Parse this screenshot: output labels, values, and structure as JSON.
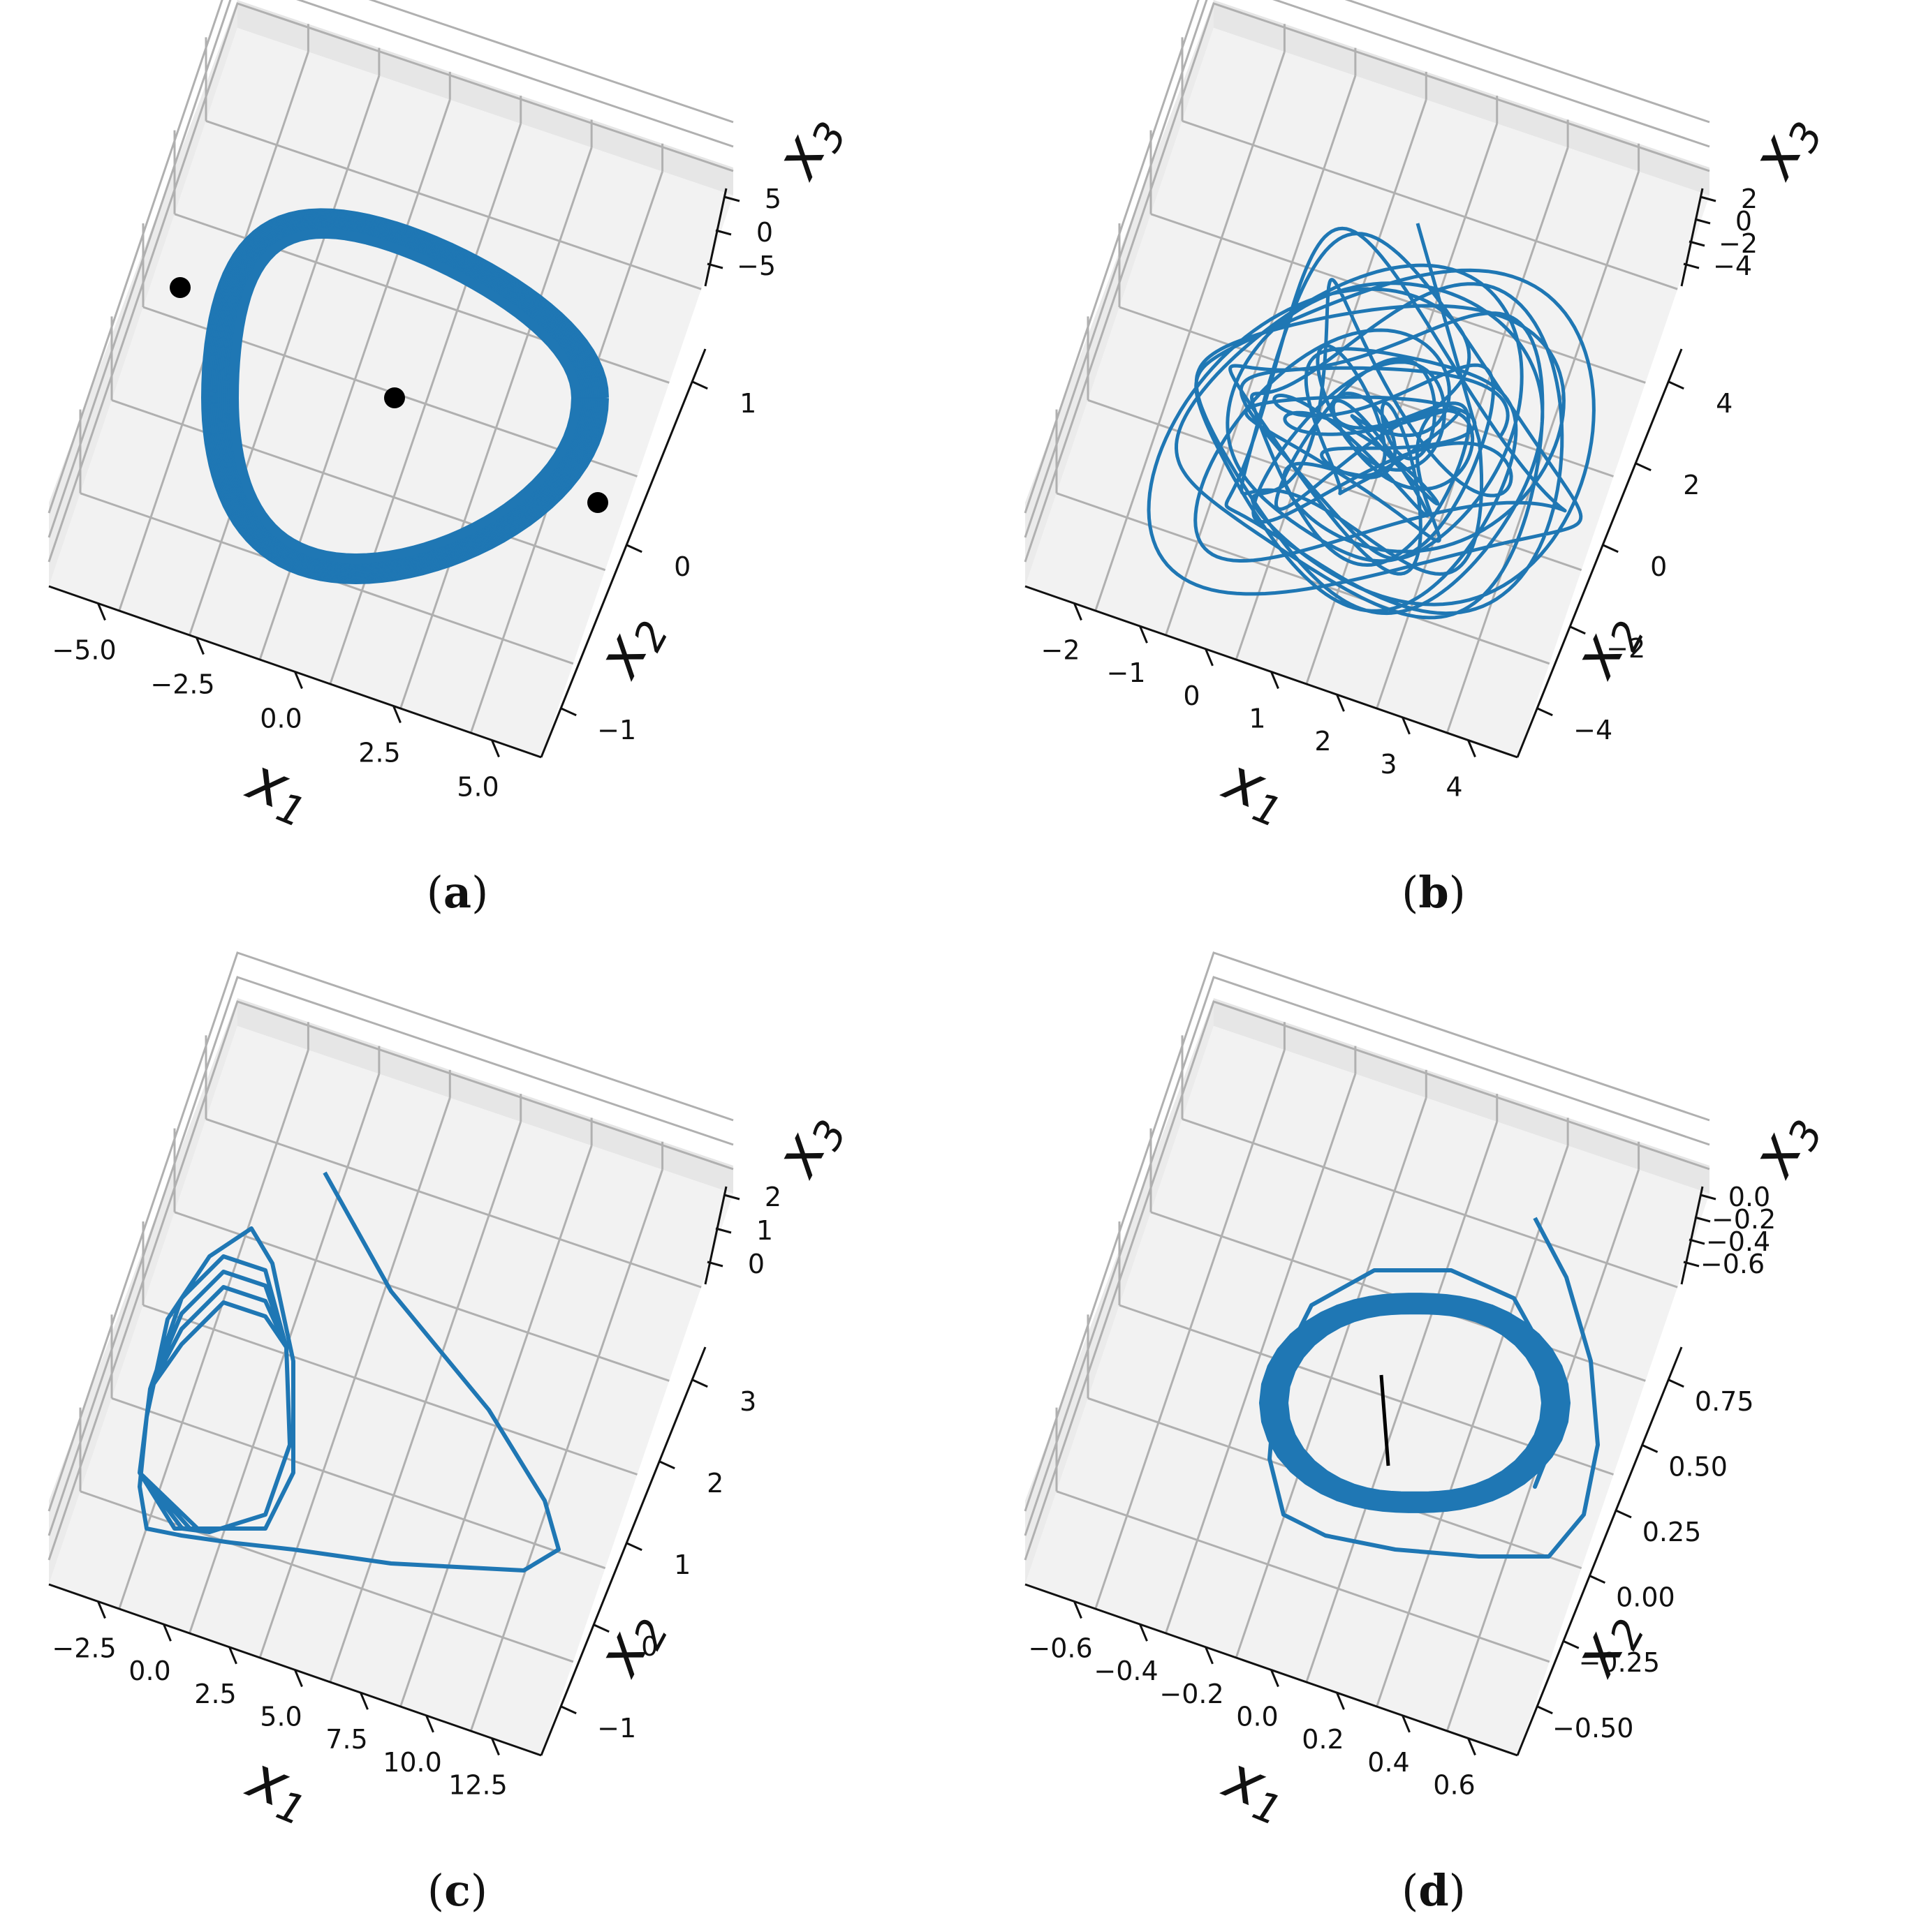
{
  "chart_data": [
    {
      "type": "line",
      "caption": "(a)",
      "caption_letter": "a",
      "x1_ticks": [
        "−5.0",
        "−2.5",
        "0.0",
        "2.5",
        "5.0"
      ],
      "x2_ticks": [
        "−1",
        "0",
        "1"
      ],
      "x3_ticks": [
        "5",
        "0",
        "−5"
      ],
      "xlabel": "x",
      "xlabel_sub": "1",
      "ylabel": "x",
      "ylabel_sub": "2",
      "zlabel": "x",
      "zlabel_sub": "3",
      "series_color": "#1f77b4",
      "trajectory": "dense chaotic attractor band",
      "points": [
        {
          "x1": -5.5,
          "x2": 0.9,
          "x3": 5
        },
        {
          "x1": 0.0,
          "x2": 0.0,
          "x3": 0
        },
        {
          "x1": 5.5,
          "x2": -0.9,
          "x3": -5
        }
      ],
      "point_color": "#000000"
    },
    {
      "type": "line",
      "caption": "(b)",
      "caption_letter": "b",
      "x1_ticks": [
        "−2",
        "−1",
        "0",
        "1",
        "2",
        "3",
        "4"
      ],
      "x2_ticks": [
        "−4",
        "−2",
        "0",
        "2",
        "4"
      ],
      "x3_ticks": [
        "2",
        "0",
        "−2",
        "−4"
      ],
      "xlabel": "x",
      "xlabel_sub": "1",
      "ylabel": "x",
      "ylabel_sub": "2",
      "zlabel": "x",
      "zlabel_sub": "3",
      "series_color": "#1f77b4",
      "trajectory": "multi-loop chaotic trajectory"
    },
    {
      "type": "line",
      "caption": "(c)",
      "caption_letter": "c",
      "x1_ticks": [
        "−2.5",
        "0.0",
        "2.5",
        "5.0",
        "7.5",
        "10.0",
        "12.5"
      ],
      "x2_ticks": [
        "−1",
        "0",
        "1",
        "2",
        "3"
      ],
      "x3_ticks": [
        "2",
        "1",
        "0"
      ],
      "xlabel": "x",
      "xlabel_sub": "1",
      "ylabel": "x",
      "ylabel_sub": "2",
      "zlabel": "x",
      "zlabel_sub": "3",
      "series_color": "#1f77b4",
      "trajectory": "trajectory converging to a triangular limit cycle"
    },
    {
      "type": "line",
      "caption": "(d)",
      "caption_letter": "d",
      "x1_ticks": [
        "−0.6",
        "−0.4",
        "−0.2",
        "0.0",
        "0.2",
        "0.4",
        "0.6"
      ],
      "x2_ticks": [
        "−0.50",
        "−0.25",
        "0.00",
        "0.25",
        "0.50",
        "0.75"
      ],
      "x3_ticks": [
        "0.0",
        "−0.2",
        "−0.4",
        "−0.6"
      ],
      "xlabel": "x",
      "xlabel_sub": "1",
      "ylabel": "x",
      "ylabel_sub": "2",
      "zlabel": "x",
      "zlabel_sub": "3",
      "series_color": "#1f77b4",
      "trajectory": "trajectory converging to a rounded limit cycle",
      "segment_color": "#000000"
    }
  ]
}
